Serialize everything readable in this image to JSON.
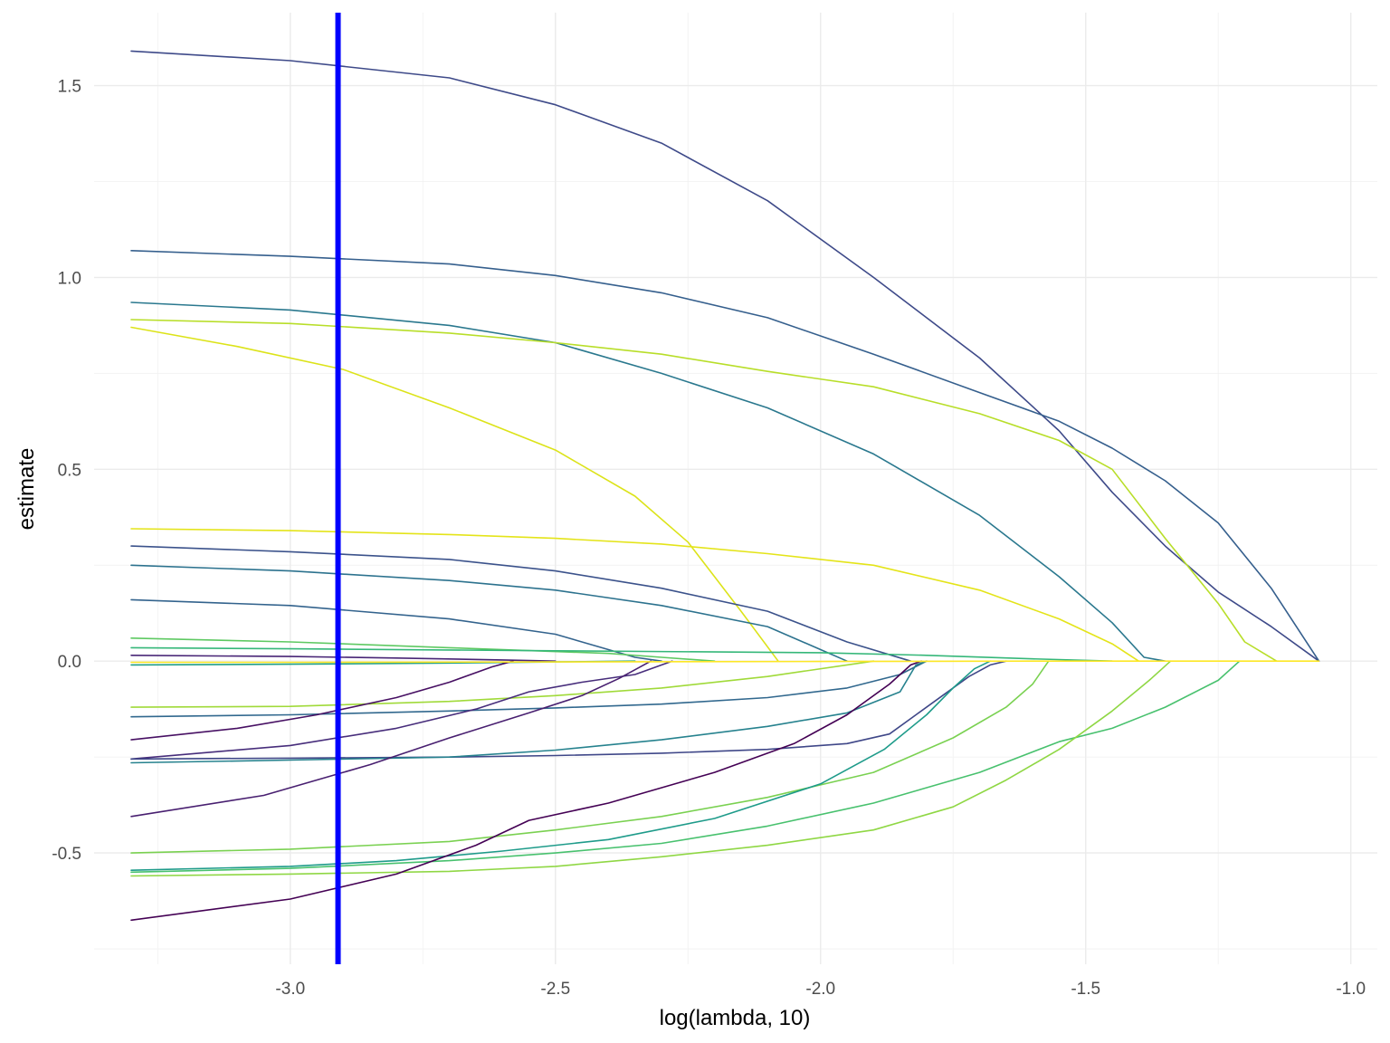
{
  "chart_data": {
    "type": "line",
    "title": "",
    "xlabel": "log(lambda, 10)",
    "ylabel": "estimate",
    "xlim": [
      -3.37,
      -0.95
    ],
    "ylim": [
      -0.79,
      1.69
    ],
    "x_ticks": [
      -3.0,
      -2.5,
      -2.0,
      -1.5,
      -1.0
    ],
    "x_tick_labels": [
      "-3.0",
      "-2.5",
      "-2.0",
      "-1.5",
      "-1.0"
    ],
    "y_ticks": [
      -0.5,
      0.0,
      0.5,
      1.0,
      1.5
    ],
    "y_tick_labels": [
      "-0.5",
      "0.0",
      "0.5",
      "1.0",
      "1.5"
    ],
    "grid": true,
    "legend": "none",
    "vline": {
      "x": -2.91,
      "color": "#0000ff"
    },
    "series": [
      {
        "color": "#3e4a89",
        "points": [
          [
            -3.3,
            1.59
          ],
          [
            -3.0,
            1.565
          ],
          [
            -2.7,
            1.52
          ],
          [
            -2.5,
            1.45
          ],
          [
            -2.3,
            1.35
          ],
          [
            -2.1,
            1.2
          ],
          [
            -1.9,
            1.0
          ],
          [
            -1.7,
            0.79
          ],
          [
            -1.55,
            0.6
          ],
          [
            -1.45,
            0.44
          ],
          [
            -1.35,
            0.3
          ],
          [
            -1.25,
            0.18
          ],
          [
            -1.15,
            0.09
          ],
          [
            -1.06,
            0.0
          ]
        ]
      },
      {
        "color": "#355f8d",
        "points": [
          [
            -3.3,
            1.07
          ],
          [
            -3.0,
            1.055
          ],
          [
            -2.7,
            1.035
          ],
          [
            -2.5,
            1.005
          ],
          [
            -2.3,
            0.96
          ],
          [
            -2.1,
            0.895
          ],
          [
            -1.9,
            0.8
          ],
          [
            -1.7,
            0.7
          ],
          [
            -1.55,
            0.625
          ],
          [
            -1.45,
            0.555
          ],
          [
            -1.35,
            0.47
          ],
          [
            -1.25,
            0.36
          ],
          [
            -1.15,
            0.19
          ],
          [
            -1.06,
            0.0
          ]
        ]
      },
      {
        "color": "#2a788e",
        "points": [
          [
            -3.3,
            0.935
          ],
          [
            -3.0,
            0.915
          ],
          [
            -2.7,
            0.875
          ],
          [
            -2.5,
            0.83
          ],
          [
            -2.3,
            0.75
          ],
          [
            -2.1,
            0.66
          ],
          [
            -1.9,
            0.54
          ],
          [
            -1.7,
            0.38
          ],
          [
            -1.55,
            0.22
          ],
          [
            -1.45,
            0.1
          ],
          [
            -1.39,
            0.01
          ],
          [
            -1.35,
            0.0
          ]
        ]
      },
      {
        "color": "#b8de29",
        "points": [
          [
            -3.3,
            0.89
          ],
          [
            -3.0,
            0.88
          ],
          [
            -2.7,
            0.855
          ],
          [
            -2.5,
            0.83
          ],
          [
            -2.3,
            0.8
          ],
          [
            -2.1,
            0.755
          ],
          [
            -1.9,
            0.715
          ],
          [
            -1.7,
            0.645
          ],
          [
            -1.55,
            0.575
          ],
          [
            -1.45,
            0.5
          ],
          [
            -1.35,
            0.32
          ],
          [
            -1.25,
            0.15
          ],
          [
            -1.2,
            0.05
          ],
          [
            -1.14,
            0.0
          ]
        ]
      },
      {
        "color": "#dce319",
        "points": [
          [
            -3.3,
            0.87
          ],
          [
            -3.1,
            0.82
          ],
          [
            -2.9,
            0.76
          ],
          [
            -2.7,
            0.66
          ],
          [
            -2.5,
            0.55
          ],
          [
            -2.35,
            0.43
          ],
          [
            -2.25,
            0.31
          ],
          [
            -2.15,
            0.13
          ],
          [
            -2.08,
            0.0
          ]
        ]
      },
      {
        "color": "#e4e419",
        "points": [
          [
            -3.3,
            0.345
          ],
          [
            -3.0,
            0.34
          ],
          [
            -2.7,
            0.33
          ],
          [
            -2.5,
            0.32
          ],
          [
            -2.3,
            0.305
          ],
          [
            -2.1,
            0.28
          ],
          [
            -1.9,
            0.25
          ],
          [
            -1.7,
            0.185
          ],
          [
            -1.55,
            0.11
          ],
          [
            -1.45,
            0.045
          ],
          [
            -1.4,
            0.0
          ]
        ]
      },
      {
        "color": "#3b528b",
        "points": [
          [
            -3.3,
            0.3
          ],
          [
            -3.0,
            0.285
          ],
          [
            -2.7,
            0.265
          ],
          [
            -2.5,
            0.235
          ],
          [
            -2.3,
            0.19
          ],
          [
            -2.1,
            0.13
          ],
          [
            -1.95,
            0.05
          ],
          [
            -1.83,
            0.0
          ]
        ]
      },
      {
        "color": "#2c728e",
        "points": [
          [
            -3.3,
            0.25
          ],
          [
            -3.0,
            0.235
          ],
          [
            -2.7,
            0.21
          ],
          [
            -2.5,
            0.185
          ],
          [
            -2.3,
            0.145
          ],
          [
            -2.1,
            0.09
          ],
          [
            -2.0,
            0.03
          ],
          [
            -1.95,
            0.0
          ]
        ]
      },
      {
        "color": "#33638d",
        "points": [
          [
            -3.3,
            0.16
          ],
          [
            -3.0,
            0.145
          ],
          [
            -2.7,
            0.11
          ],
          [
            -2.5,
            0.07
          ],
          [
            -2.35,
            0.01
          ],
          [
            -2.3,
            0.0
          ]
        ]
      },
      {
        "color": "#5ec962",
        "points": [
          [
            -3.3,
            0.06
          ],
          [
            -3.0,
            0.05
          ],
          [
            -2.7,
            0.035
          ],
          [
            -2.4,
            0.02
          ],
          [
            -2.3,
            0.01
          ],
          [
            -2.2,
            0.0
          ]
        ]
      },
      {
        "color": "#35b779",
        "points": [
          [
            -3.3,
            0.035
          ],
          [
            -3.0,
            0.032
          ],
          [
            -2.5,
            0.027
          ],
          [
            -2.0,
            0.022
          ],
          [
            -1.8,
            0.015
          ],
          [
            -1.6,
            0.006
          ],
          [
            -1.45,
            0.0
          ]
        ]
      },
      {
        "color": "#482576",
        "points": [
          [
            -3.3,
            0.015
          ],
          [
            -3.0,
            0.012
          ],
          [
            -2.8,
            0.008
          ],
          [
            -2.6,
            0.003
          ],
          [
            -2.5,
            0.0
          ]
        ]
      },
      {
        "color": "#1f9e89",
        "points": [
          [
            -3.3,
            -0.01
          ],
          [
            -3.0,
            -0.008
          ],
          [
            -2.7,
            -0.005
          ],
          [
            -2.5,
            -0.002
          ],
          [
            -2.35,
            0.0
          ]
        ]
      },
      {
        "color": "#a0da39",
        "points": [
          [
            -3.3,
            -0.12
          ],
          [
            -3.0,
            -0.118
          ],
          [
            -2.7,
            -0.105
          ],
          [
            -2.5,
            -0.09
          ],
          [
            -2.3,
            -0.07
          ],
          [
            -2.1,
            -0.04
          ],
          [
            -1.95,
            -0.01
          ],
          [
            -1.9,
            0.0
          ]
        ]
      },
      {
        "color": "#31688e",
        "points": [
          [
            -3.3,
            -0.145
          ],
          [
            -3.0,
            -0.14
          ],
          [
            -2.7,
            -0.13
          ],
          [
            -2.5,
            -0.122
          ],
          [
            -2.3,
            -0.112
          ],
          [
            -2.1,
            -0.095
          ],
          [
            -1.95,
            -0.07
          ],
          [
            -1.85,
            -0.035
          ],
          [
            -1.8,
            0.0
          ]
        ]
      },
      {
        "color": "#471063",
        "points": [
          [
            -3.3,
            -0.205
          ],
          [
            -3.1,
            -0.175
          ],
          [
            -2.95,
            -0.14
          ],
          [
            -2.8,
            -0.095
          ],
          [
            -2.7,
            -0.055
          ],
          [
            -2.62,
            -0.015
          ],
          [
            -2.58,
            0.0
          ]
        ]
      },
      {
        "color": "#472d7b",
        "points": [
          [
            -3.3,
            -0.255
          ],
          [
            -3.0,
            -0.22
          ],
          [
            -2.8,
            -0.175
          ],
          [
            -2.65,
            -0.125
          ],
          [
            -2.55,
            -0.08
          ],
          [
            -2.45,
            -0.055
          ],
          [
            -2.35,
            -0.035
          ],
          [
            -2.28,
            0.0
          ]
        ]
      },
      {
        "color": "#3f4788",
        "points": [
          [
            -3.3,
            -0.255
          ],
          [
            -3.0,
            -0.253
          ],
          [
            -2.7,
            -0.25
          ],
          [
            -2.5,
            -0.246
          ],
          [
            -2.3,
            -0.24
          ],
          [
            -2.1,
            -0.23
          ],
          [
            -1.95,
            -0.215
          ],
          [
            -1.87,
            -0.19
          ],
          [
            -1.82,
            -0.14
          ],
          [
            -1.77,
            -0.09
          ],
          [
            -1.72,
            -0.04
          ],
          [
            -1.68,
            -0.01
          ],
          [
            -1.65,
            0.0
          ]
        ]
      },
      {
        "color": "#26828e",
        "points": [
          [
            -3.3,
            -0.265
          ],
          [
            -3.0,
            -0.258
          ],
          [
            -2.7,
            -0.25
          ],
          [
            -2.5,
            -0.232
          ],
          [
            -2.3,
            -0.205
          ],
          [
            -2.1,
            -0.17
          ],
          [
            -1.95,
            -0.135
          ],
          [
            -1.85,
            -0.08
          ],
          [
            -1.82,
            -0.01
          ],
          [
            -1.8,
            0.0
          ]
        ]
      },
      {
        "color": "#481f70",
        "points": [
          [
            -3.3,
            -0.405
          ],
          [
            -3.05,
            -0.35
          ],
          [
            -2.85,
            -0.27
          ],
          [
            -2.7,
            -0.2
          ],
          [
            -2.55,
            -0.135
          ],
          [
            -2.45,
            -0.09
          ],
          [
            -2.38,
            -0.045
          ],
          [
            -2.32,
            0.0
          ]
        ]
      },
      {
        "color": "#7ad151",
        "points": [
          [
            -3.3,
            -0.5
          ],
          [
            -3.0,
            -0.49
          ],
          [
            -2.7,
            -0.47
          ],
          [
            -2.5,
            -0.44
          ],
          [
            -2.3,
            -0.405
          ],
          [
            -2.1,
            -0.355
          ],
          [
            -1.9,
            -0.29
          ],
          [
            -1.75,
            -0.2
          ],
          [
            -1.65,
            -0.12
          ],
          [
            -1.6,
            -0.06
          ],
          [
            -1.57,
            0.0
          ]
        ]
      },
      {
        "color": "#1e9b8a",
        "points": [
          [
            -3.3,
            -0.545
          ],
          [
            -3.0,
            -0.535
          ],
          [
            -2.8,
            -0.52
          ],
          [
            -2.6,
            -0.495
          ],
          [
            -2.4,
            -0.465
          ],
          [
            -2.2,
            -0.41
          ],
          [
            -2.0,
            -0.32
          ],
          [
            -1.88,
            -0.23
          ],
          [
            -1.8,
            -0.14
          ],
          [
            -1.75,
            -0.07
          ],
          [
            -1.71,
            -0.02
          ],
          [
            -1.68,
            0.0
          ]
        ]
      },
      {
        "color": "#48c16e",
        "points": [
          [
            -3.3,
            -0.55
          ],
          [
            -3.0,
            -0.54
          ],
          [
            -2.7,
            -0.52
          ],
          [
            -2.5,
            -0.5
          ],
          [
            -2.3,
            -0.475
          ],
          [
            -2.1,
            -0.43
          ],
          [
            -1.9,
            -0.37
          ],
          [
            -1.7,
            -0.29
          ],
          [
            -1.55,
            -0.21
          ],
          [
            -1.45,
            -0.175
          ],
          [
            -1.35,
            -0.12
          ],
          [
            -1.25,
            -0.05
          ],
          [
            -1.21,
            0.0
          ]
        ]
      },
      {
        "color": "#8fd744",
        "points": [
          [
            -3.3,
            -0.56
          ],
          [
            -3.0,
            -0.555
          ],
          [
            -2.7,
            -0.548
          ],
          [
            -2.5,
            -0.535
          ],
          [
            -2.3,
            -0.51
          ],
          [
            -2.1,
            -0.48
          ],
          [
            -1.9,
            -0.44
          ],
          [
            -1.75,
            -0.38
          ],
          [
            -1.65,
            -0.31
          ],
          [
            -1.55,
            -0.23
          ],
          [
            -1.45,
            -0.13
          ],
          [
            -1.38,
            -0.05
          ],
          [
            -1.34,
            0.0
          ]
        ]
      },
      {
        "color": "#440154",
        "points": [
          [
            -3.3,
            -0.675
          ],
          [
            -3.0,
            -0.62
          ],
          [
            -2.8,
            -0.555
          ],
          [
            -2.65,
            -0.48
          ],
          [
            -2.55,
            -0.415
          ],
          [
            -2.4,
            -0.37
          ],
          [
            -2.2,
            -0.29
          ],
          [
            -2.05,
            -0.215
          ],
          [
            -1.95,
            -0.14
          ],
          [
            -1.87,
            -0.06
          ],
          [
            -1.83,
            -0.01
          ],
          [
            -1.81,
            0.0
          ]
        ]
      },
      {
        "color": "#fde725",
        "points": [
          [
            -3.3,
            -0.003
          ],
          [
            -3.0,
            -0.003
          ],
          [
            -2.5,
            -0.002
          ],
          [
            -2.0,
            -0.001
          ],
          [
            -1.6,
            0.0
          ],
          [
            -1.06,
            0.0
          ]
        ]
      }
    ]
  }
}
